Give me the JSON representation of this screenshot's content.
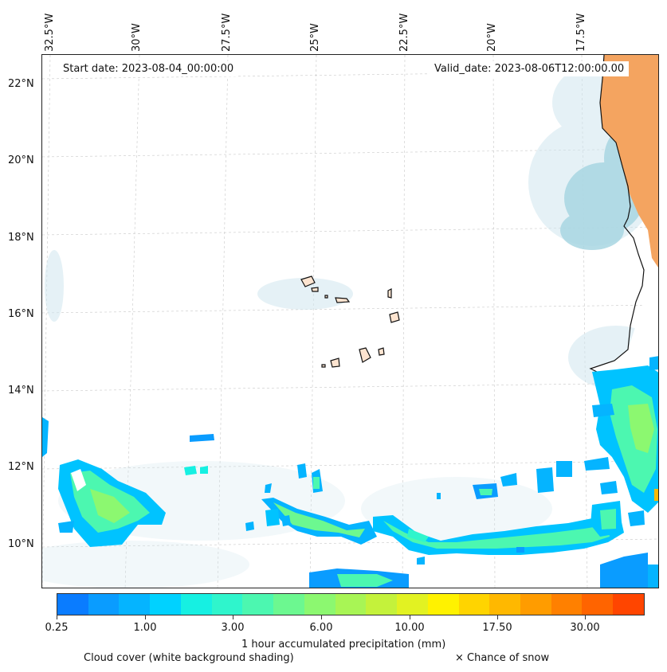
{
  "map": {
    "start_date": "Start date: 2023-08-04_00:00:00",
    "valid_date": "Valid_date: 2023-08-06T12:00:00.00",
    "longitude_labels": [
      "32.5°W",
      "30°W",
      "27.5°W",
      "25°W",
      "22.5°W",
      "20°W",
      "17.5°W"
    ],
    "latitude_labels": [
      "22°N",
      "20°N",
      "18°N",
      "16°N",
      "14°N",
      "12°N",
      "10°N"
    ],
    "extent": {
      "lon_min": -32.5,
      "lon_max": -15.6,
      "lat_min": 8.9,
      "lat_max": 22.8
    }
  },
  "colorbar": {
    "label": "1 hour accumulated precipitation (mm)",
    "tick_labels": [
      "0.25",
      "1.00",
      "3.00",
      "6.00",
      "10.00",
      "17.50",
      "30.00"
    ],
    "colors": [
      "#0a7cff",
      "#0a9cff",
      "#05b4ff",
      "#00d2ff",
      "#16f0e2",
      "#2ff5cc",
      "#4cf7b0",
      "#6cf890",
      "#8cf870",
      "#a8f555",
      "#c4f23b",
      "#e2f222",
      "#fff200",
      "#ffd400",
      "#ffb800",
      "#ff9c00",
      "#ff8000",
      "#ff6400",
      "#ff4500"
    ]
  },
  "legend": {
    "cloud_cover": "Cloud cover (white background shading)",
    "snow": "× Chance of snow"
  }
}
